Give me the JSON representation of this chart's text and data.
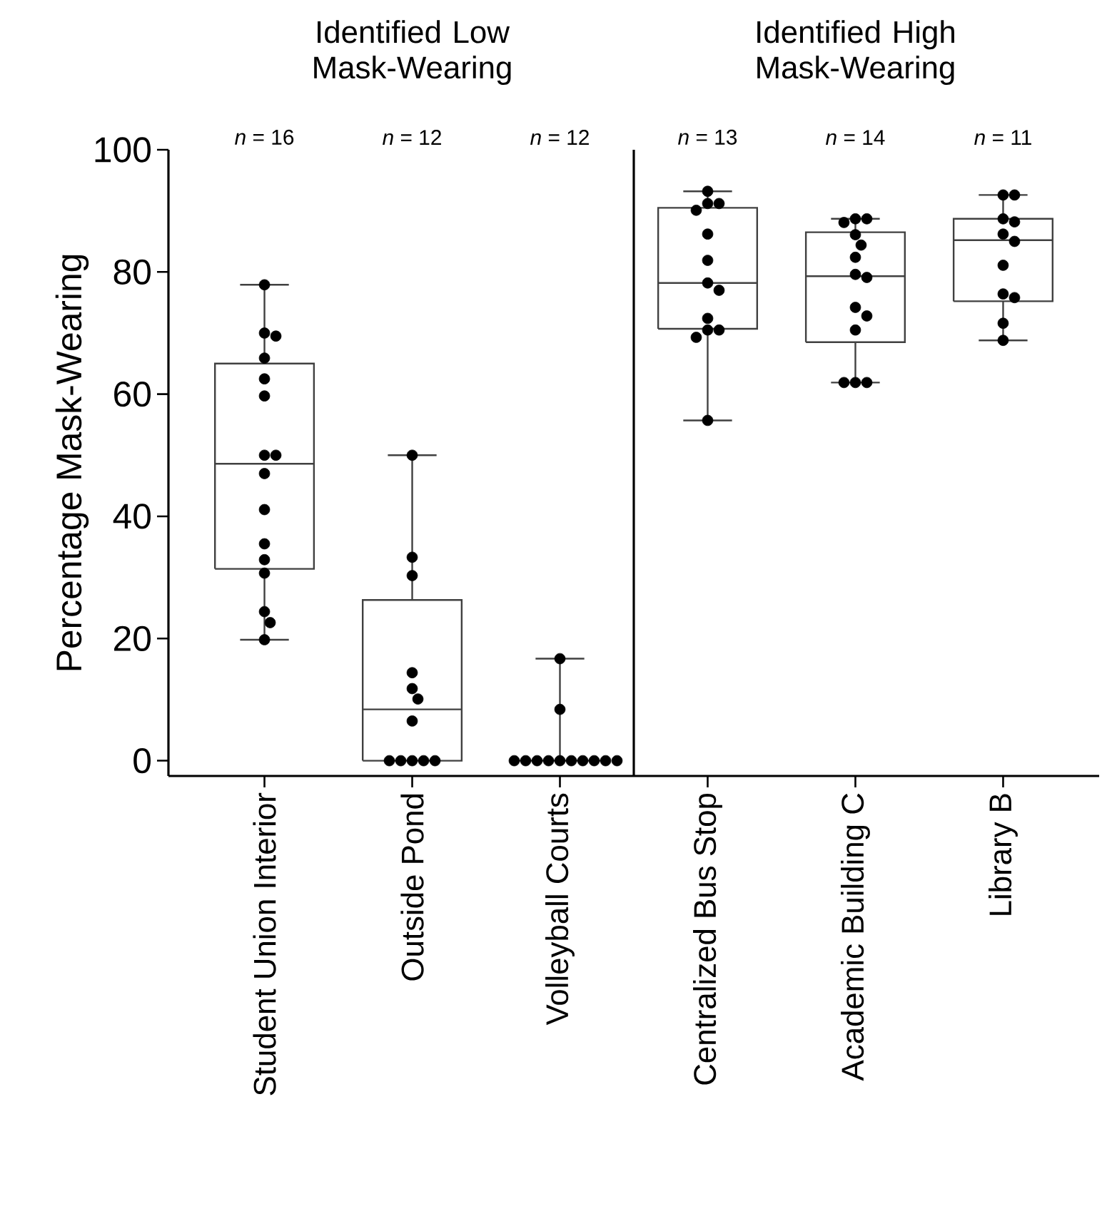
{
  "chart_data": {
    "type": "box",
    "categories": [
      "Student Union Interior",
      "Outside Pond",
      "Volleyball Courts",
      "Centralized Bus Stop",
      "Academic Building C",
      "Library B"
    ],
    "ylabel": "Percentage Mask-Wearing",
    "ylim": [
      -2.5,
      100
    ],
    "yticks": [
      0,
      20,
      40,
      60,
      80,
      100
    ],
    "series": [
      {
        "type": "box",
        "color": "#404040",
        "boxes": [
          {
            "low": 19.8,
            "q1": 31.4,
            "median": 48.6,
            "q3": 65.0,
            "high": 77.9
          },
          {
            "low": 0,
            "q1": 0,
            "median": 8.4,
            "q3": 26.3,
            "high": 50.0
          },
          {
            "low": 0,
            "q1": 0,
            "median": 0,
            "q3": 0,
            "high": 16.7
          },
          {
            "low": 55.7,
            "q1": 70.7,
            "median": 78.2,
            "q3": 90.5,
            "high": 93.2
          },
          {
            "low": 61.9,
            "q1": 68.5,
            "median": 79.3,
            "q3": 86.5,
            "high": 88.7
          },
          {
            "low": 68.8,
            "q1": 75.2,
            "median": 85.2,
            "q3": 88.7,
            "high": 92.6
          }
        ]
      },
      {
        "type": "scatter",
        "color": "#000000",
        "marker": "circle",
        "x": [
          "Student Union Interior",
          "Student Union Interior",
          "Student Union Interior",
          "Student Union Interior",
          "Student Union Interior",
          "Student Union Interior",
          "Student Union Interior",
          "Student Union Interior",
          "Student Union Interior",
          "Student Union Interior",
          "Student Union Interior",
          "Student Union Interior",
          "Student Union Interior",
          "Student Union Interior",
          "Student Union Interior",
          "Student Union Interior",
          "Outside Pond",
          "Outside Pond",
          "Outside Pond",
          "Outside Pond",
          "Outside Pond",
          "Outside Pond",
          "Outside Pond",
          "Outside Pond",
          "Outside Pond",
          "Outside Pond",
          "Outside Pond",
          "Outside Pond",
          "Volleyball Courts",
          "Volleyball Courts",
          "Volleyball Courts",
          "Volleyball Courts",
          "Volleyball Courts",
          "Volleyball Courts",
          "Volleyball Courts",
          "Volleyball Courts",
          "Volleyball Courts",
          "Volleyball Courts",
          "Volleyball Courts",
          "Volleyball Courts",
          "Centralized Bus Stop",
          "Centralized Bus Stop",
          "Centralized Bus Stop",
          "Centralized Bus Stop",
          "Centralized Bus Stop",
          "Centralized Bus Stop",
          "Centralized Bus Stop",
          "Centralized Bus Stop",
          "Centralized Bus Stop",
          "Centralized Bus Stop",
          "Centralized Bus Stop",
          "Centralized Bus Stop",
          "Centralized Bus Stop",
          "Academic Building C",
          "Academic Building C",
          "Academic Building C",
          "Academic Building C",
          "Academic Building C",
          "Academic Building C",
          "Academic Building C",
          "Academic Building C",
          "Academic Building C",
          "Academic Building C",
          "Academic Building C",
          "Academic Building C",
          "Academic Building C",
          "Academic Building C",
          "Library B",
          "Library B",
          "Library B",
          "Library B",
          "Library B",
          "Library B",
          "Library B",
          "Library B",
          "Library B",
          "Library B",
          "Library B"
        ],
        "values": [
          77.9,
          70.0,
          69.5,
          65.9,
          62.5,
          59.7,
          50.0,
          50.0,
          47.0,
          41.1,
          35.5,
          32.9,
          30.7,
          24.4,
          22.6,
          19.8,
          50.0,
          33.3,
          30.3,
          14.4,
          11.8,
          10.1,
          6.5,
          0,
          0,
          0,
          0,
          0,
          16.7,
          8.4,
          0,
          0,
          0,
          0,
          0,
          0,
          0,
          0,
          0,
          0,
          93.2,
          91.2,
          91.2,
          90.1,
          86.2,
          81.9,
          78.2,
          77.0,
          72.4,
          70.5,
          70.5,
          69.3,
          55.7,
          88.7,
          88.7,
          88.1,
          86.1,
          84.4,
          82.4,
          79.6,
          79.1,
          74.2,
          72.8,
          70.5,
          61.9,
          61.9,
          61.9,
          92.6,
          92.6,
          88.7,
          88.2,
          86.2,
          85.0,
          81.1,
          76.4,
          75.8,
          71.6,
          68.8
        ]
      }
    ],
    "annotations": [
      "Identified Low Mask-Wearing",
      "Identified High Mask-Wearing",
      "*n* = 16",
      "*n* = 12",
      "*n* = 12",
      "*n* = 13",
      "*n* = 14",
      "*n* = 11"
    ]
  }
}
